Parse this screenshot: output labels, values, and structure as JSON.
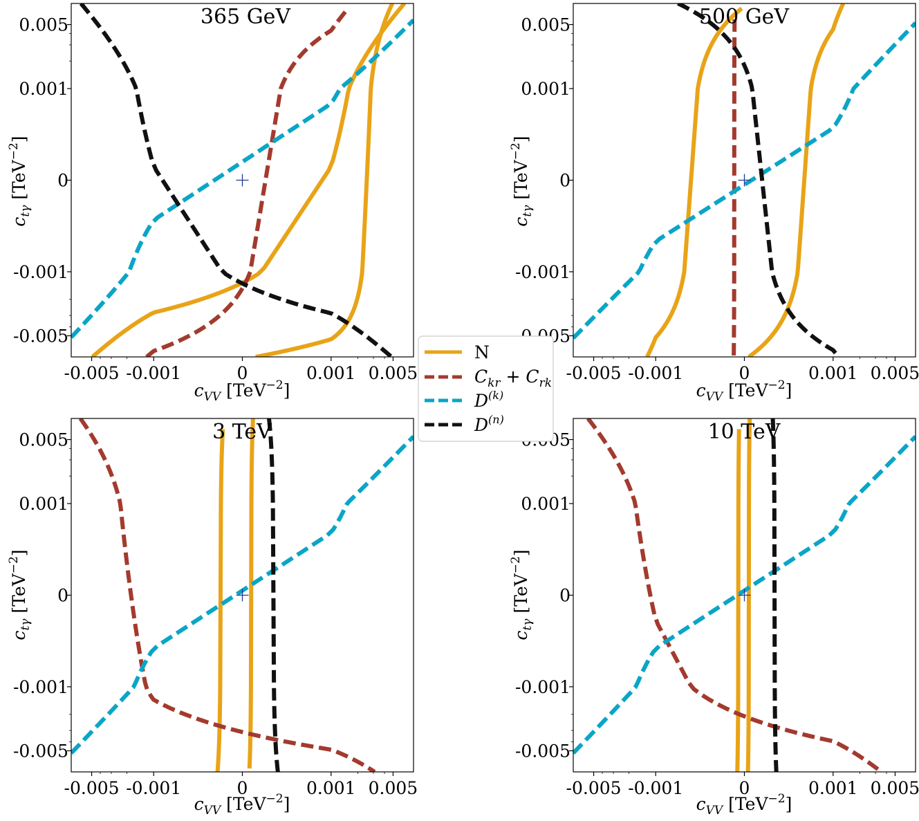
{
  "axis_labels": {
    "x_base": "c",
    "x_sub": "VV",
    "x_unit_open": " [TeV",
    "x_unit_exp": "−2",
    "x_unit_close": "]",
    "y_base": "c",
    "y_sub": "tγ",
    "y_unit_open": " [TeV",
    "y_unit_exp": "−2",
    "y_unit_close": "]"
  },
  "legend": {
    "position": "center",
    "entries": [
      {
        "key": "N",
        "label": "N",
        "color": "#e8a317",
        "style": "solid"
      },
      {
        "key": "C",
        "label_base1": "C",
        "label_sub1": "kr",
        "label_plus": " + ",
        "label_base2": "C",
        "label_sub2": "rk",
        "color": "#a33a2e",
        "style": "dashed"
      },
      {
        "key": "Dk",
        "label_base": "D",
        "label_sup": "(k)",
        "color": "#0aa5c7",
        "style": "dashed"
      },
      {
        "key": "Dn",
        "label_base": "D",
        "label_sup": "(n)",
        "color": "#111111",
        "style": "dashed"
      }
    ]
  },
  "chart_data": [
    {
      "type": "line",
      "title": "365 GeV",
      "scale": "symlog",
      "linthresh": 0.001,
      "xlim": [
        -0.0085,
        0.0085
      ],
      "ylim": [
        -0.0085,
        0.0085
      ],
      "xticks": [
        {
          "value": -0.005,
          "label": "-0.005"
        },
        {
          "value": -0.001,
          "label": "-0.001"
        },
        {
          "value": 0,
          "label": "0"
        },
        {
          "value": 0.001,
          "label": "0.001"
        },
        {
          "value": 0.005,
          "label": "0.005"
        }
      ],
      "yticks": [
        {
          "value": -0.005,
          "label": "-0.005"
        },
        {
          "value": -0.001,
          "label": "-0.001"
        },
        {
          "value": 0,
          "label": "0"
        },
        {
          "value": 0.001,
          "label": "0.001"
        },
        {
          "value": 0.005,
          "label": "0.005"
        }
      ],
      "series": [
        {
          "name": "N",
          "key": "N",
          "x": [
            -0.0049,
            0.0067
          ],
          "y": [
            -0.0085,
            0.0085
          ]
        },
        {
          "name": "N",
          "key": "N",
          "x": [
            0.00015,
            0.0049
          ],
          "y": [
            -0.0085,
            0.0085
          ]
        },
        {
          "name": "Ckr+Crk",
          "key": "C",
          "x": [
            -0.0012,
            0.00155
          ],
          "y": [
            -0.0085,
            0.0075
          ]
        },
        {
          "name": "D(k)",
          "key": "Dk",
          "x": [
            -0.0085,
            0.0085
          ],
          "y": [
            -0.0052,
            0.0056
          ]
        },
        {
          "name": "D(n)",
          "key": "Dn",
          "x": [
            -0.0066,
            0.0048
          ],
          "y": [
            0.0085,
            -0.0085
          ]
        }
      ]
    },
    {
      "type": "line",
      "title": "500 GeV",
      "scale": "symlog",
      "linthresh": 0.001,
      "xlim": [
        -0.0085,
        0.0085
      ],
      "ylim": [
        -0.0085,
        0.0085
      ],
      "xticks": [
        {
          "value": -0.005,
          "label": "-0.005"
        },
        {
          "value": -0.001,
          "label": "-0.001"
        },
        {
          "value": 0,
          "label": "0"
        },
        {
          "value": 0.001,
          "label": "0.001"
        },
        {
          "value": 0.005,
          "label": "0.005"
        }
      ],
      "yticks": [
        {
          "value": -0.005,
          "label": "-0.005"
        },
        {
          "value": -0.001,
          "label": "-0.001"
        },
        {
          "value": 0,
          "label": "0"
        },
        {
          "value": 0.001,
          "label": "0.001"
        },
        {
          "value": 0.005,
          "label": "0.005"
        }
      ],
      "series": [
        {
          "name": "N",
          "key": "N",
          "x": [
            -0.00125,
            -3e-05
          ],
          "y": [
            -0.0085,
            0.0075
          ]
        },
        {
          "name": "N",
          "key": "N",
          "x": [
            5e-05,
            0.0013
          ],
          "y": [
            -0.0085,
            0.0085
          ]
        },
        {
          "name": "Ckr+Crk",
          "key": "C",
          "x": [
            -0.00012,
            -0.00011
          ],
          "y": [
            -0.0082,
            0.0065
          ]
        },
        {
          "name": "D(k)",
          "key": "Dk",
          "x": [
            -0.0085,
            0.0085
          ],
          "y": [
            -0.0053,
            0.0052
          ]
        },
        {
          "name": "D(n)",
          "key": "Dn",
          "x": [
            -0.00075,
            0.00115
          ],
          "y": [
            0.0085,
            -0.0085
          ]
        }
      ]
    },
    {
      "type": "line",
      "title": "3 TeV",
      "scale": "symlog",
      "linthresh": 0.001,
      "xlim": [
        -0.0085,
        0.0085
      ],
      "ylim": [
        -0.0085,
        0.0085
      ],
      "xticks": [
        {
          "value": -0.005,
          "label": "-0.005"
        },
        {
          "value": -0.001,
          "label": "-0.001"
        },
        {
          "value": 0,
          "label": "0"
        },
        {
          "value": 0.001,
          "label": "0.001"
        },
        {
          "value": 0.005,
          "label": "0.005"
        }
      ],
      "yticks": [
        {
          "value": -0.005,
          "label": "-0.005"
        },
        {
          "value": -0.001,
          "label": "-0.001"
        },
        {
          "value": 0,
          "label": "0"
        },
        {
          "value": 0.001,
          "label": "0.001"
        },
        {
          "value": 0.005,
          "label": "0.005"
        }
      ],
      "series": [
        {
          "name": "N",
          "key": "N",
          "x": [
            -0.00028,
            -0.00022
          ],
          "y": [
            -0.0085,
            0.0065
          ]
        },
        {
          "name": "N",
          "key": "N",
          "x": [
            8e-05,
            0.00012
          ],
          "y": [
            -0.0078,
            0.0085
          ]
        },
        {
          "name": "Ckr+Crk",
          "key": "C",
          "x": [
            -0.0067,
            0.0031
          ],
          "y": [
            0.0085,
            -0.0085
          ]
        },
        {
          "name": "D(k)",
          "key": "Dk",
          "x": [
            -0.0085,
            0.0085
          ],
          "y": [
            -0.0053,
            0.0054
          ]
        },
        {
          "name": "D(n)",
          "key": "Dn",
          "x": [
            0.0003,
            0.0004
          ],
          "y": [
            0.0085,
            -0.0085
          ]
        }
      ]
    },
    {
      "type": "line",
      "title": "10 TeV",
      "scale": "symlog",
      "linthresh": 0.001,
      "xlim": [
        -0.0085,
        0.0085
      ],
      "ylim": [
        -0.0085,
        0.0085
      ],
      "xticks": [
        {
          "value": -0.005,
          "label": "-0.005"
        },
        {
          "value": -0.001,
          "label": "-0.001"
        },
        {
          "value": 0,
          "label": "0"
        },
        {
          "value": 0.001,
          "label": "0.001"
        },
        {
          "value": 0.005,
          "label": "0.005"
        }
      ],
      "yticks": [
        {
          "value": -0.005,
          "label": "-0.005"
        },
        {
          "value": -0.001,
          "label": "-0.001"
        },
        {
          "value": 0,
          "label": "0"
        },
        {
          "value": 0.001,
          "label": "0.001"
        },
        {
          "value": 0.005,
          "label": "0.005"
        }
      ],
      "series": [
        {
          "name": "N",
          "key": "N",
          "x": [
            -8e-05,
            -6e-05
          ],
          "y": [
            -0.0085,
            0.0065
          ]
        },
        {
          "name": "N",
          "key": "N",
          "x": [
            4e-05,
            6e-05
          ],
          "y": [
            -0.0085,
            0.0085
          ]
        },
        {
          "name": "Ckr+Crk",
          "key": "C",
          "x": [
            -0.0058,
            0.0035
          ],
          "y": [
            0.0085,
            -0.0085
          ]
        },
        {
          "name": "D(k)",
          "key": "Dk",
          "x": [
            -0.0085,
            0.0085
          ],
          "y": [
            -0.0053,
            0.0054
          ]
        },
        {
          "name": "D(n)",
          "key": "Dn",
          "x": [
            0.00032,
            0.00036
          ],
          "y": [
            0.0085,
            -0.0085
          ]
        }
      ]
    }
  ]
}
